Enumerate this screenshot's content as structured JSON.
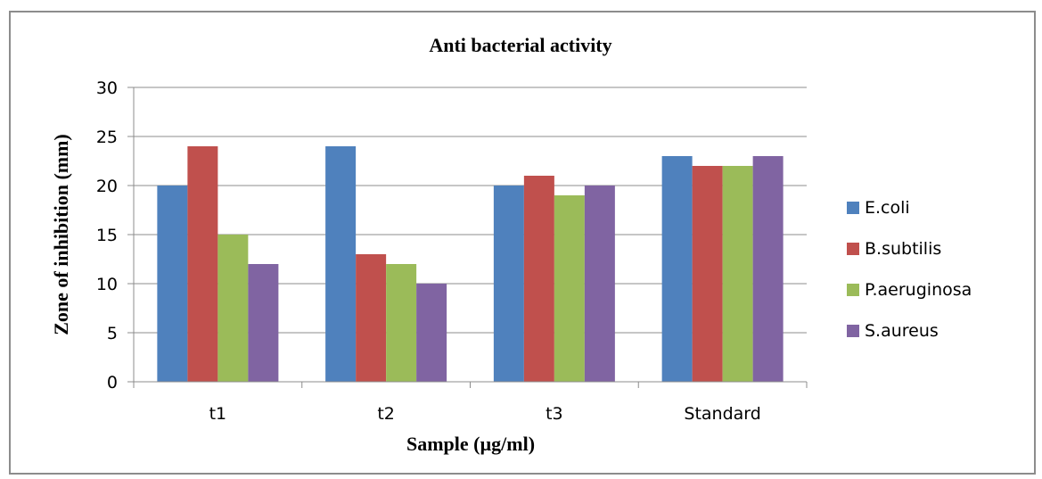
{
  "chart_data": {
    "type": "bar",
    "title": "Anti bacterial activity",
    "xlabel": "Sample (µg/ml)",
    "ylabel": "Zone of inhibition (mm)",
    "categories": [
      "t1",
      "t2",
      "t3",
      "Standard"
    ],
    "ylim": [
      0,
      30
    ],
    "yticks": [
      0,
      5,
      10,
      15,
      20,
      25,
      30
    ],
    "grid": true,
    "legend_position": "right",
    "series": [
      {
        "name": "E.coli",
        "color": "#4f81bd",
        "values": [
          20,
          24,
          20,
          23
        ]
      },
      {
        "name": "B.subtilis",
        "color": "#c0504d",
        "values": [
          24,
          13,
          21,
          22
        ]
      },
      {
        "name": "P.aeruginosa",
        "color": "#9bbb59",
        "values": [
          15,
          12,
          19,
          22
        ]
      },
      {
        "name": "S.aureus",
        "color": "#8064a2",
        "values": [
          12,
          10,
          20,
          23
        ]
      }
    ]
  }
}
